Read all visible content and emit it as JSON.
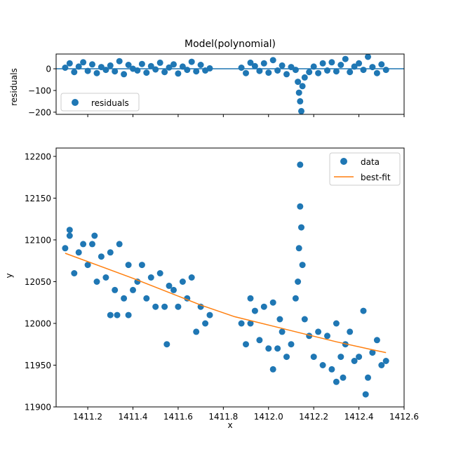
{
  "chart_data": [
    {
      "type": "scatter",
      "title": "Model(polynomial)",
      "xlabel": "",
      "ylabel": "residuals",
      "xlim": [
        1411.06,
        1412.6
      ],
      "ylim": [
        -210,
        68
      ],
      "yticks": [
        0,
        -100,
        -200
      ],
      "ytick_labels": [
        "0",
        "−100",
        "−200"
      ],
      "xticks": [
        1411.2,
        1411.4,
        1411.6,
        1411.8,
        1412.0,
        1412.2,
        1412.4,
        1412.6
      ],
      "show_xtick_labels": false,
      "grid": false,
      "legend": {
        "loc": "lower left",
        "entries": [
          {
            "label": "residuals",
            "marker": "circle"
          }
        ]
      },
      "reference_line_y": 0,
      "series": [
        {
          "name": "residuals",
          "x": [
            1411.1,
            1411.12,
            1411.14,
            1411.16,
            1411.18,
            1411.2,
            1411.22,
            1411.24,
            1411.26,
            1411.28,
            1411.3,
            1411.32,
            1411.34,
            1411.36,
            1411.38,
            1411.4,
            1411.42,
            1411.44,
            1411.46,
            1411.48,
            1411.5,
            1411.52,
            1411.54,
            1411.56,
            1411.58,
            1411.6,
            1411.62,
            1411.64,
            1411.66,
            1411.68,
            1411.7,
            1411.72,
            1411.74,
            1411.88,
            1411.9,
            1411.92,
            1411.94,
            1411.96,
            1411.98,
            1412.0,
            1412.02,
            1412.04,
            1412.06,
            1412.08,
            1412.1,
            1412.12,
            1412.13,
            1412.135,
            1412.14,
            1412.145,
            1412.15,
            1412.16,
            1412.18,
            1412.2,
            1412.22,
            1412.24,
            1412.26,
            1412.28,
            1412.3,
            1412.32,
            1412.34,
            1412.36,
            1412.38,
            1412.4,
            1412.42,
            1412.44,
            1412.46,
            1412.48,
            1412.5,
            1412.52
          ],
          "y": [
            5,
            25,
            -15,
            10,
            30,
            -10,
            20,
            -20,
            8,
            -5,
            15,
            -12,
            35,
            -25,
            18,
            0,
            -8,
            22,
            -18,
            12,
            -3,
            28,
            -15,
            6,
            20,
            -22,
            10,
            -5,
            32,
            -12,
            18,
            -8,
            2,
            5,
            -20,
            28,
            12,
            -10,
            25,
            -18,
            40,
            -8,
            15,
            -25,
            8,
            -5,
            -60,
            -110,
            -150,
            -195,
            -80,
            -40,
            -15,
            10,
            -20,
            25,
            -8,
            30,
            -12,
            18,
            45,
            -15,
            10,
            25,
            -5,
            55,
            8,
            -20,
            20,
            -5
          ]
        }
      ]
    },
    {
      "type": "scatter",
      "title": "",
      "xlabel": "x",
      "ylabel": "y",
      "xlim": [
        1411.06,
        1412.6
      ],
      "ylim": [
        11900,
        12210
      ],
      "xticks": [
        1411.2,
        1411.4,
        1411.6,
        1411.8,
        1412.0,
        1412.2,
        1412.4,
        1412.6
      ],
      "xtick_labels": [
        "1411.2",
        "1411.4",
        "1411.6",
        "1411.8",
        "1412.0",
        "1412.2",
        "1412.4",
        "1412.6"
      ],
      "yticks": [
        11900,
        11950,
        12000,
        12050,
        12100,
        12150,
        12200
      ],
      "ytick_labels": [
        "11900",
        "11950",
        "12000",
        "12050",
        "12100",
        "12150",
        "12200"
      ],
      "grid": false,
      "legend": {
        "loc": "upper right",
        "entries": [
          {
            "label": "data",
            "marker": "circle"
          },
          {
            "label": "best-fit",
            "marker": "line"
          }
        ]
      },
      "series": [
        {
          "name": "data",
          "x": [
            1411.1,
            1411.12,
            1411.14,
            1411.16,
            1411.18,
            1411.2,
            1411.22,
            1411.24,
            1411.26,
            1411.28,
            1411.3,
            1411.32,
            1411.34,
            1411.36,
            1411.38,
            1411.4,
            1411.42,
            1411.44,
            1411.46,
            1411.48,
            1411.5,
            1411.52,
            1411.54,
            1411.56,
            1411.58,
            1411.6,
            1411.62,
            1411.64,
            1411.66,
            1411.68,
            1411.7,
            1411.72,
            1411.74,
            1411.88,
            1411.9,
            1411.92,
            1411.94,
            1411.96,
            1411.98,
            1412.0,
            1412.02,
            1412.04,
            1412.06,
            1412.08,
            1412.1,
            1412.12,
            1412.13,
            1412.135,
            1412.14,
            1412.14,
            1412.145,
            1412.15,
            1412.16,
            1412.18,
            1412.2,
            1412.22,
            1412.24,
            1412.26,
            1412.28,
            1412.3,
            1412.32,
            1412.34,
            1412.36,
            1412.38,
            1412.4,
            1412.42,
            1412.44,
            1412.46,
            1412.48,
            1412.5,
            1412.52,
            1411.12,
            1411.23,
            1411.3,
            1411.33,
            1411.38,
            1411.55,
            1411.92,
            1412.02,
            1412.05,
            1412.3,
            1412.33,
            1412.43
          ],
          "y": [
            12090,
            12105,
            12060,
            12085,
            12095,
            12070,
            12095,
            12050,
            12080,
            12055,
            12085,
            12040,
            12095,
            12030,
            12070,
            12040,
            12050,
            12070,
            12030,
            12055,
            12020,
            12060,
            12020,
            12045,
            12040,
            12020,
            12050,
            12030,
            12055,
            11990,
            12020,
            12000,
            12010,
            12000,
            11975,
            12030,
            12015,
            11980,
            12020,
            11970,
            12025,
            11970,
            11990,
            11960,
            11975,
            12030,
            12050,
            12090,
            12140,
            12190,
            12115,
            12070,
            12005,
            11985,
            11960,
            11990,
            11950,
            11985,
            11945,
            12000,
            11960,
            11975,
            11990,
            11955,
            11960,
            12015,
            11935,
            11965,
            11980,
            11950,
            11955,
            12112,
            12105,
            12010,
            12010,
            12010,
            11975,
            12000,
            11945,
            12005,
            11930,
            11935,
            11915
          ]
        },
        {
          "name": "best-fit",
          "x": [
            1411.1,
            1411.25,
            1411.4,
            1411.55,
            1411.7,
            1411.85,
            1412.0,
            1412.15,
            1412.3,
            1412.45,
            1412.52
          ],
          "y": [
            12084,
            12069,
            12054,
            12038,
            12022,
            12008,
            11998,
            11988,
            11978,
            11969,
            11965
          ]
        }
      ]
    }
  ]
}
